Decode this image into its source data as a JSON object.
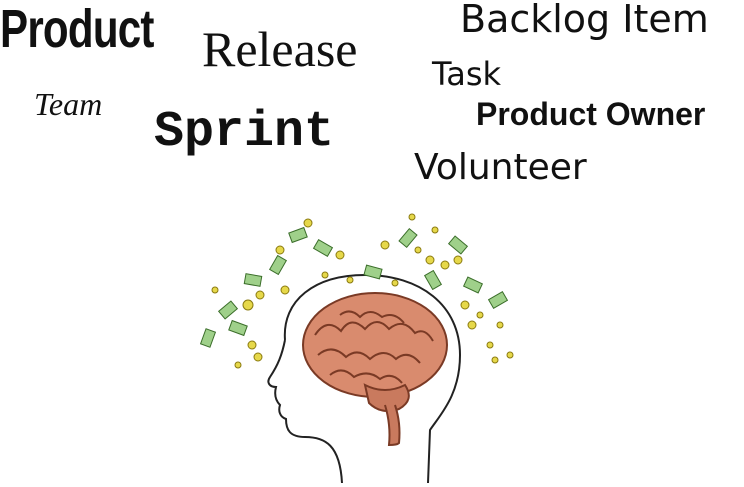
{
  "word_cloud": {
    "product": "Product",
    "release": "Release",
    "backlog_item": "Backlog Item",
    "task": "Task",
    "team": "Team",
    "sprint": "Sprint",
    "product_owner": "Product Owner",
    "volunteer": "Volunteer"
  },
  "illustration": {
    "name": "brain-with-money",
    "colors": {
      "brain": "#d98b6e",
      "brain_outline": "#7a3a25",
      "head_outline": "#222222",
      "money": "#9fd08a",
      "coin": "#e6d84a"
    }
  }
}
